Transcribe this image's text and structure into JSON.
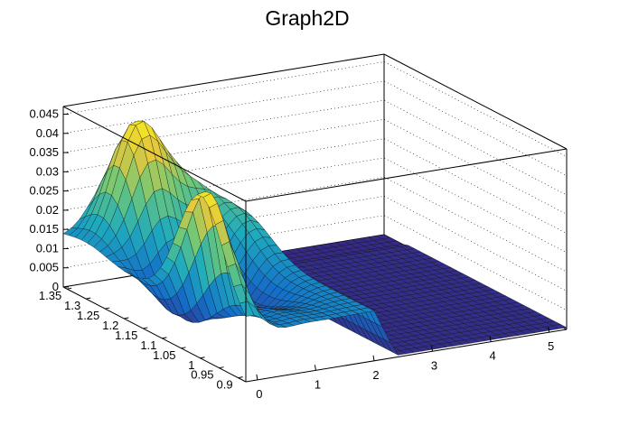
{
  "chart_data": {
    "type": "surface",
    "title": "Graph2D",
    "xlabel": "",
    "ylabel": "",
    "zlabel": "",
    "x_ticks": [
      "0",
      "1",
      "2",
      "3",
      "4",
      "5"
    ],
    "y_ticks": [
      "0.9",
      "0.95",
      "1",
      "1.05",
      "1.1",
      "1.15",
      "1.2",
      "1.25",
      "1.3",
      "1.35"
    ],
    "z_ticks": [
      "0",
      "0.005",
      "0.01",
      "0.015",
      "0.02",
      "0.025",
      "0.03",
      "0.035",
      "0.04",
      "0.045"
    ],
    "xlim": [
      -0.2,
      5.3
    ],
    "ylim": [
      0.88,
      1.36
    ],
    "zlim": [
      0,
      0.047
    ],
    "colormap": "viridis-like (blue to yellow)",
    "grid": "dotted on back walls",
    "surface_description": "Irregular 2D graph surface; values near zero for x > 2.3; peaks ~0.045 around x≈0.5-1.0, y≈1.25-1.35 and x≈-0.2, y≈1.0"
  }
}
